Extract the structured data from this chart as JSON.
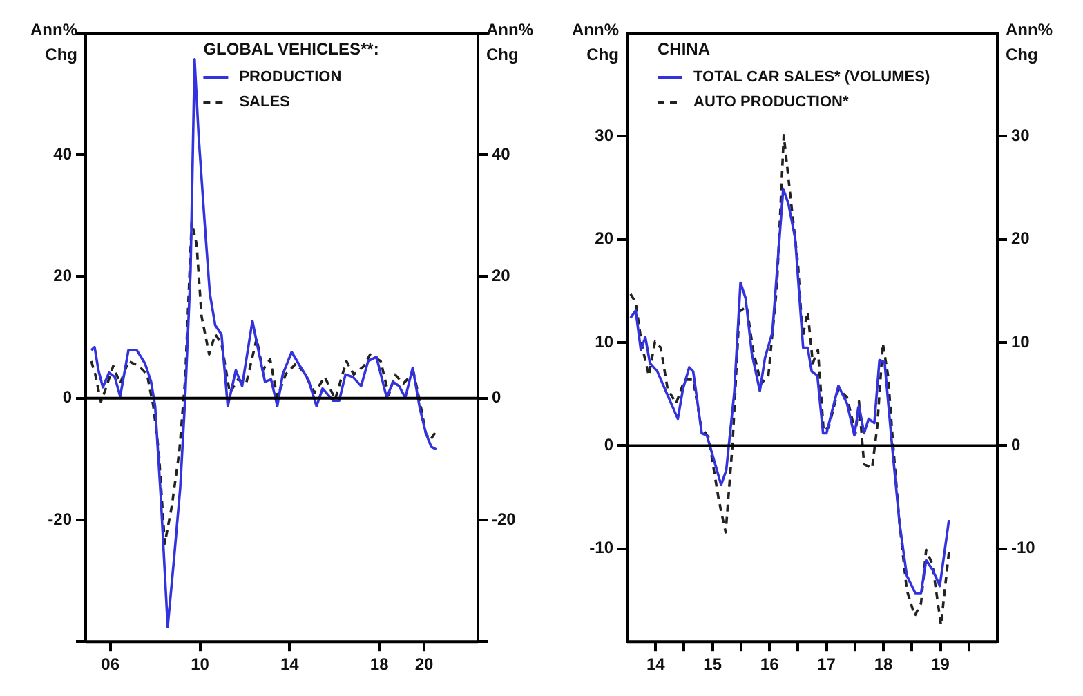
{
  "chart_data": [
    {
      "type": "line",
      "legend_title": "GLOBAL VEHICLES**:",
      "ylabel": "Ann%\nChg",
      "y2label": "Ann%\nChg",
      "legend": "top",
      "xlim": [
        2004.9,
        2022.4
      ],
      "xticks": [
        {
          "value": 2006,
          "label": "06"
        },
        {
          "value": 2010,
          "label": "10"
        },
        {
          "value": 2014,
          "label": "14"
        },
        {
          "value": 2018,
          "label": "18"
        },
        {
          "value": 2020,
          "label": "20"
        }
      ],
      "ylim": [
        -40,
        60
      ],
      "yticks": [
        {
          "value": -40,
          "label": null
        },
        -20,
        0,
        20,
        40,
        {
          "value": 60,
          "label": null
        }
      ],
      "y2lim": [
        -40,
        60
      ],
      "y2ticks": [
        {
          "value": -40,
          "label": null
        },
        -20,
        0,
        20,
        40,
        {
          "value": 60,
          "label": null
        }
      ],
      "ref_lines": [
        {
          "axis": "y",
          "value": 0,
          "color": "#000000"
        }
      ],
      "series": [
        {
          "name": "PRODUCTION",
          "color": "#3333dd",
          "line_style": "solid",
          "x": [
            2005.15,
            2005.3,
            2005.47,
            2005.67,
            2005.94,
            2006.2,
            2006.44,
            2006.81,
            2007.18,
            2007.55,
            2007.82,
            2008.0,
            2008.25,
            2008.56,
            2008.84,
            2009.12,
            2009.34,
            2009.58,
            2009.76,
            2009.94,
            2010.22,
            2010.44,
            2010.68,
            2010.96,
            2011.24,
            2011.6,
            2011.88,
            2012.34,
            2012.62,
            2012.9,
            2013.17,
            2013.45,
            2013.69,
            2014.09,
            2014.46,
            2014.83,
            2015.2,
            2015.47,
            2015.94,
            2016.21,
            2016.49,
            2016.82,
            2017.19,
            2017.5,
            2017.87,
            2018.33,
            2018.61,
            2018.88,
            2019.16,
            2019.49,
            2019.81,
            2020.08,
            2020.32,
            2020.54
          ],
          "values": [
            7.9,
            8.4,
            4.6,
            1.8,
            4.2,
            3.5,
            0.3,
            7.9,
            7.9,
            5.7,
            2.7,
            -1.3,
            -16.1,
            -37.6,
            -26.5,
            -14.7,
            0.1,
            20.9,
            55.7,
            43.1,
            28.3,
            17.2,
            12,
            10.5,
            -1.3,
            4.6,
            2,
            12.7,
            7.6,
            2.7,
            3.1,
            -1.3,
            3.9,
            7.6,
            5.3,
            3.1,
            -1.3,
            1.6,
            -0.4,
            -0.4,
            3.9,
            3.5,
            2,
            6.1,
            6.8,
            0.1,
            2.7,
            2,
            0.1,
            5,
            -1.7,
            -5.8,
            -8,
            -8.4
          ]
        },
        {
          "name": "SALES",
          "color": "#222222",
          "line_style": "dashed",
          "x": [
            2005.15,
            2005.33,
            2005.58,
            2005.8,
            2006.13,
            2006.44,
            2006.81,
            2007.27,
            2007.64,
            2007.92,
            2008.16,
            2008.43,
            2008.75,
            2009.08,
            2009.34,
            2009.63,
            2009.85,
            2010.07,
            2010.41,
            2010.68,
            2010.96,
            2011.33,
            2011.7,
            2012.06,
            2012.53,
            2012.8,
            2013.13,
            2013.45,
            2013.82,
            2014.28,
            2014.65,
            2015.11,
            2015.57,
            2016.03,
            2016.53,
            2016.86,
            2017.32,
            2017.59,
            2018.06,
            2018.42,
            2018.7,
            2019.07,
            2019.53,
            2019.81,
            2020.08,
            2020.27,
            2020.54
          ],
          "values": [
            6.1,
            3.9,
            -0.6,
            1.6,
            5.3,
            2.4,
            6.1,
            5.3,
            3.9,
            -1.3,
            -8.7,
            -23.9,
            -17.6,
            -8.7,
            3.1,
            29,
            25.3,
            13.5,
            7.2,
            10.5,
            9,
            0.9,
            3.1,
            2.4,
            9.8,
            4.6,
            6.4,
            0.1,
            3.9,
            5.7,
            4.2,
            0.9,
            3.5,
            -0.2,
            6.1,
            3.9,
            5.3,
            7.2,
            6.1,
            0.5,
            3.9,
            2.4,
            4.2,
            -0.6,
            -5.8,
            -6.9,
            -5.4
          ]
        }
      ]
    },
    {
      "type": "line",
      "legend_title": "CHINA",
      "ylabel": "Ann%\nChg",
      "y2label": "Ann%\nChg",
      "legend": "top left",
      "xlim": [
        2013.5,
        2020
      ],
      "xticks": [
        {
          "value": 2014,
          "label": "14"
        },
        {
          "value": 2014.5,
          "label": null
        },
        {
          "value": 2015,
          "label": "15"
        },
        {
          "value": 2015.5,
          "label": null
        },
        {
          "value": 2016,
          "label": "16"
        },
        {
          "value": 2016.5,
          "label": null
        },
        {
          "value": 2017,
          "label": "17"
        },
        {
          "value": 2017.5,
          "label": null
        },
        {
          "value": 2018,
          "label": "18"
        },
        {
          "value": 2018.5,
          "label": null
        },
        {
          "value": 2019,
          "label": "19"
        },
        {
          "value": 2019.5,
          "label": null
        }
      ],
      "ylim": [
        -19,
        40
      ],
      "yticks": [
        -10,
        0,
        10,
        20,
        30
      ],
      "y2lim": [
        -19,
        40
      ],
      "y2ticks": [
        -10,
        0,
        10,
        20,
        30
      ],
      "ref_lines": [
        {
          "axis": "y",
          "value": 0,
          "color": "#000000"
        }
      ],
      "series": [
        {
          "name": "TOTAL CAR SALES* (VOLUMES)",
          "color": "#3333dd",
          "line_style": "solid",
          "x": [
            2013.56,
            2013.65,
            2013.74,
            2013.82,
            2013.9,
            2014.03,
            2014.21,
            2014.39,
            2014.48,
            2014.59,
            2014.66,
            2014.81,
            2014.9,
            2015.15,
            2015.24,
            2015.38,
            2015.49,
            2015.58,
            2015.69,
            2015.83,
            2015.92,
            2016.05,
            2016.24,
            2016.33,
            2016.45,
            2016.59,
            2016.67,
            2016.74,
            2016.84,
            2016.94,
            2017.0,
            2017.21,
            2017.36,
            2017.49,
            2017.57,
            2017.66,
            2017.74,
            2017.84,
            2017.93,
            2018.02,
            2018.15,
            2018.28,
            2018.41,
            2018.56,
            2018.66,
            2018.75,
            2018.86,
            2018.99,
            2019.15
          ],
          "values": [
            12.4,
            13.1,
            9.3,
            10.5,
            8,
            7.2,
            4.9,
            2.6,
            5.5,
            7.6,
            7.2,
            1.2,
            1,
            -3.8,
            -2.4,
            5.1,
            15.8,
            14.3,
            8.9,
            5.3,
            8.5,
            11,
            24.9,
            23.5,
            20.1,
            9.5,
            9.5,
            7.2,
            6.8,
            1.2,
            1.2,
            5.8,
            4.1,
            1,
            3.9,
            1.2,
            2.6,
            2.2,
            8.3,
            8.1,
            0.1,
            -7.4,
            -12.6,
            -14.3,
            -14.3,
            -11.1,
            -12,
            -13.6,
            -7.2
          ]
        },
        {
          "name": "AUTO PRODUCTION*",
          "color": "#222222",
          "line_style": "dashed",
          "x": [
            2013.56,
            2013.65,
            2013.76,
            2013.88,
            2013.99,
            2014.09,
            2014.21,
            2014.36,
            2014.51,
            2014.66,
            2014.8,
            2014.93,
            2015.11,
            2015.23,
            2015.35,
            2015.47,
            2015.6,
            2015.71,
            2015.85,
            2015.98,
            2016.13,
            2016.25,
            2016.39,
            2016.5,
            2016.58,
            2016.67,
            2016.76,
            2016.85,
            2016.95,
            2017.04,
            2017.21,
            2017.36,
            2017.51,
            2017.57,
            2017.66,
            2017.8,
            2017.89,
            2017.99,
            2018.08,
            2018.17,
            2018.28,
            2018.41,
            2018.55,
            2018.66,
            2018.75,
            2018.86,
            2019.01,
            2019.15
          ],
          "values": [
            14.7,
            13.9,
            9.7,
            6.8,
            10.1,
            9.5,
            5.5,
            4.1,
            6.4,
            6.4,
            1.8,
            0.8,
            -5.3,
            -8.4,
            0.1,
            13,
            13.5,
            9.3,
            6,
            6.8,
            15.5,
            30.1,
            23,
            17.6,
            10.5,
            13,
            8,
            9.3,
            1.4,
            1.8,
            5.5,
            4.7,
            1.2,
            4.3,
            -1.8,
            -2.2,
            1.8,
            9.9,
            6.8,
            0.1,
            -7.4,
            -14,
            -16.5,
            -15.3,
            -10.1,
            -11.5,
            -17.4,
            -10.3
          ]
        }
      ]
    }
  ]
}
